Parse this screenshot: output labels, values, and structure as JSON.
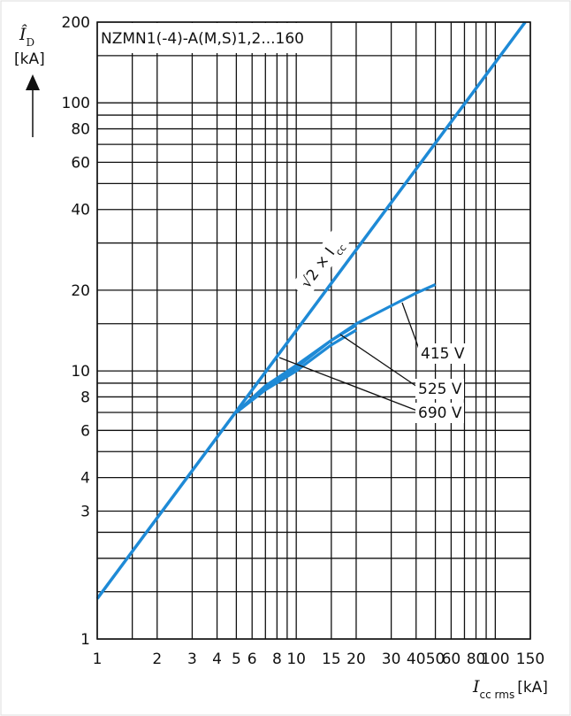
{
  "chart_data": {
    "type": "line",
    "title": "NZMN1(-4)-A(M,S)1,2...160",
    "y_label": "Î",
    "y_label_sub": "D",
    "y_unit": "[kA]",
    "x_label": "I",
    "x_label_sub": "cc rms",
    "x_unit": "[kA]",
    "log_x": true,
    "log_y": true,
    "grid": true,
    "xlim": [
      1,
      150
    ],
    "ylim": [
      1,
      200
    ],
    "xticks": [
      1,
      2,
      3,
      4,
      5,
      6,
      8,
      10,
      15,
      20,
      30,
      40,
      50,
      60,
      80,
      100,
      150
    ],
    "yticks": [
      1,
      3,
      4,
      6,
      8,
      10,
      20,
      40,
      60,
      80,
      100,
      200
    ],
    "x_minor_grid": [
      1.5,
      7,
      9,
      70,
      90
    ],
    "y_minor_grid": [
      1.5,
      2,
      2.5,
      5,
      7,
      9,
      15,
      30,
      50,
      70,
      90,
      150
    ],
    "series": [
      {
        "name": "√2 × I",
        "name_sub": "cc",
        "color": "#1e8ad6",
        "x": [
          1,
          141.4
        ],
        "values": [
          1.414,
          200
        ]
      },
      {
        "name": "415 V",
        "color": "#1e8ad6",
        "x": [
          5,
          7,
          10,
          15,
          20,
          30,
          40,
          50
        ],
        "values": [
          7,
          8.8,
          10.5,
          13,
          15,
          17.5,
          19.5,
          21
        ]
      },
      {
        "name": "525 V",
        "color": "#1e8ad6",
        "x": [
          5,
          7,
          10,
          15,
          20
        ],
        "values": [
          7,
          8.6,
          10.3,
          13,
          14.8
        ]
      },
      {
        "name": "690 V",
        "color": "#1e8ad6",
        "x": [
          5,
          7,
          10,
          15,
          20
        ],
        "values": [
          7,
          8.5,
          10,
          12.5,
          14.2
        ]
      }
    ]
  }
}
